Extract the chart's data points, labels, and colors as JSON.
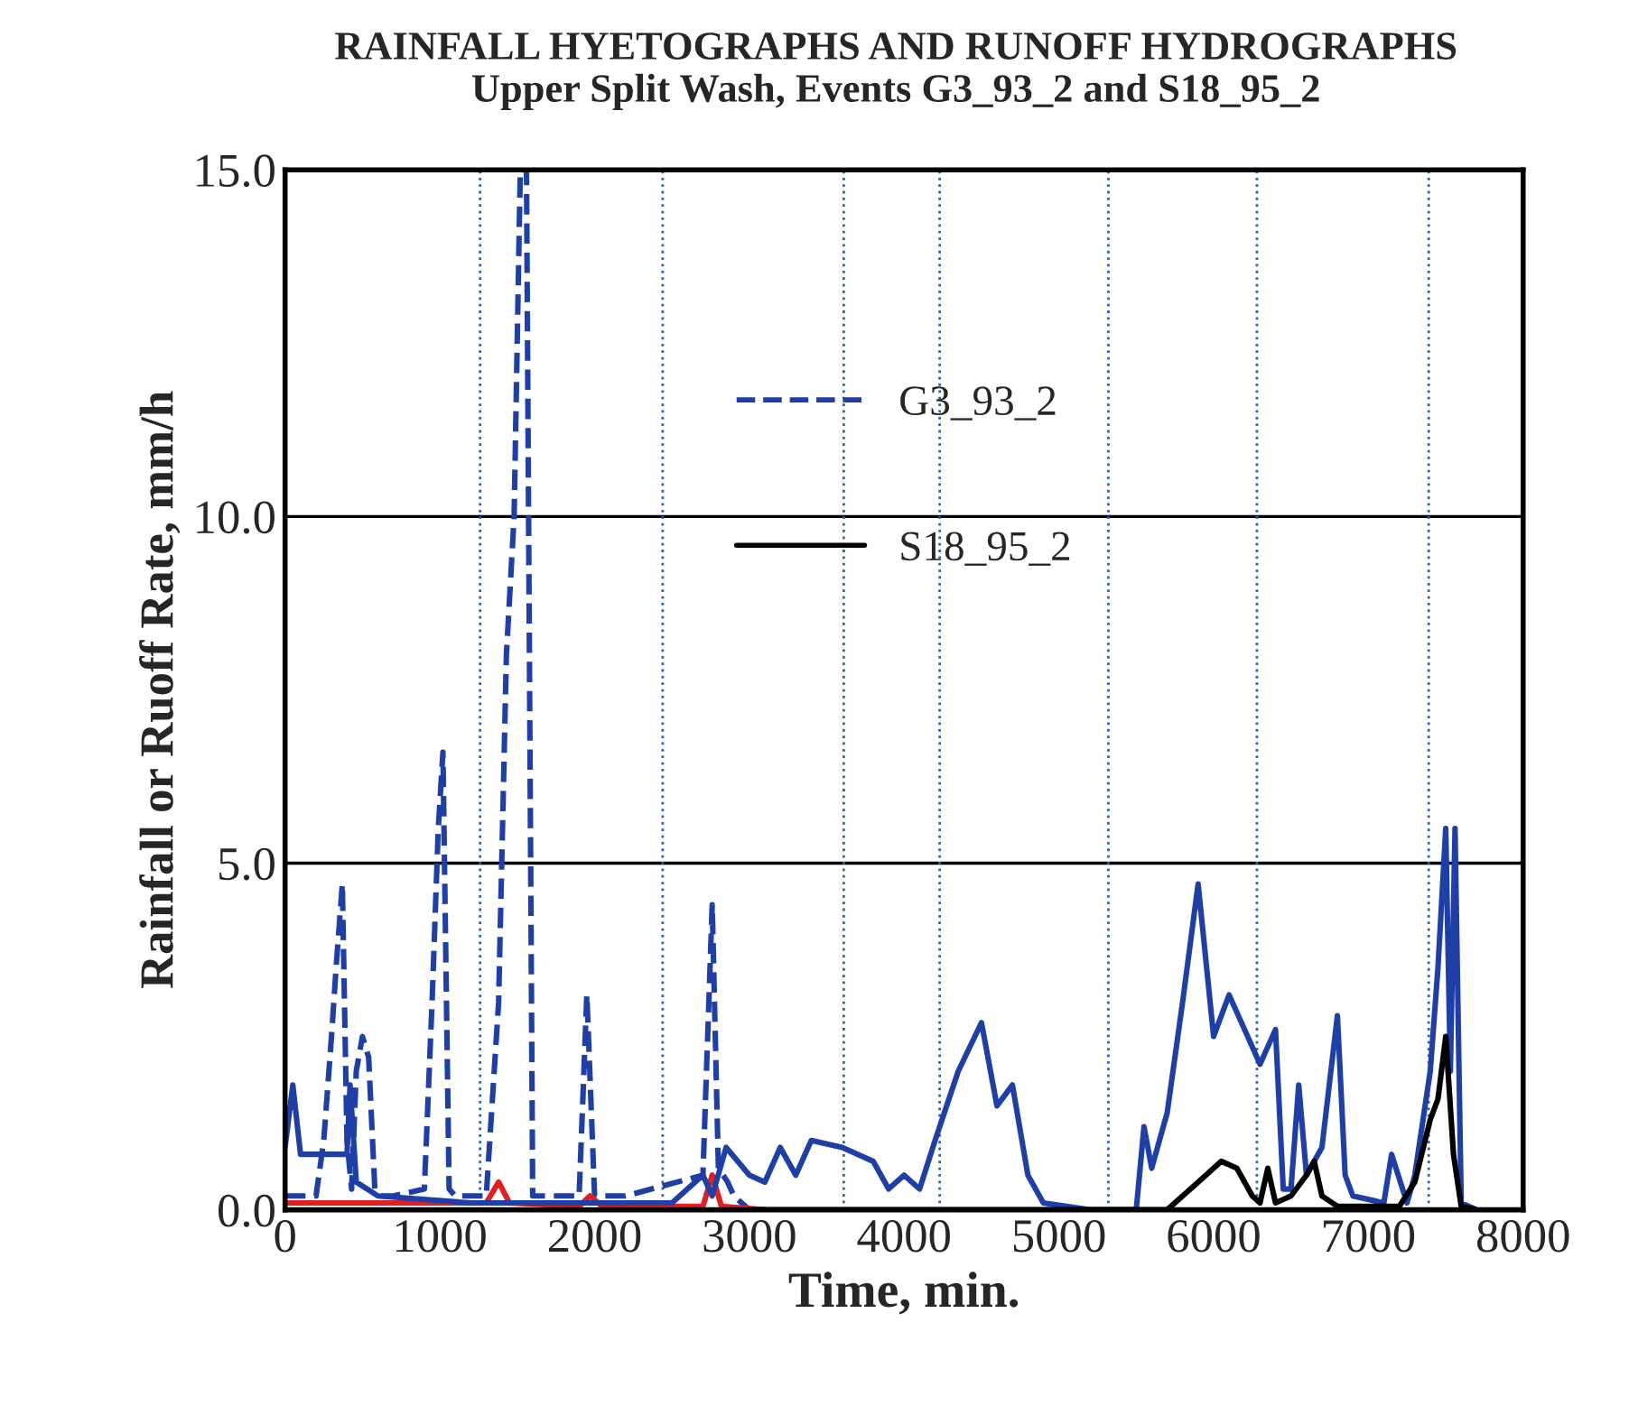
{
  "chart_data": {
    "type": "line",
    "title": "RAINFALL HYETOGRAPHS AND RUNOFF HYDROGRAPHS",
    "subtitle": "Upper Split Wash, Events G3_93_2 and S18_95_2",
    "xlabel": "Time, min.",
    "ylabel": "Rainfall or Ruoff Rate, mm/h",
    "xlim": [
      0,
      8000
    ],
    "ylim": [
      0,
      15
    ],
    "xticks": [
      0,
      1000,
      2000,
      3000,
      4000,
      5000,
      6000,
      7000,
      8000
    ],
    "yticks": [
      {
        "value": 0,
        "label": "0.0"
      },
      {
        "value": 5,
        "label": "5.0"
      },
      {
        "value": 10,
        "label": "10.0"
      },
      {
        "value": 15,
        "label": "15.0"
      }
    ],
    "grid": false,
    "legend": "top",
    "ref_lines": [
      {
        "axis": "y",
        "value": 5,
        "color": "#000000",
        "line_style": "solid"
      },
      {
        "axis": "y",
        "value": 10,
        "color": "#000000",
        "line_style": "solid"
      },
      {
        "axis": "x",
        "value": 1260,
        "color": "#2c5fc0",
        "line_style": "dotted"
      },
      {
        "axis": "x",
        "value": 2440,
        "color": "#2c5fc0",
        "line_style": "dotted"
      },
      {
        "axis": "x",
        "value": 3610,
        "color": "#2c5fc0",
        "line_style": "dotted"
      },
      {
        "axis": "x",
        "value": 4230,
        "color": "#2c5fc0",
        "line_style": "dotted"
      },
      {
        "axis": "x",
        "value": 5320,
        "color": "#2c5fc0",
        "line_style": "dotted"
      },
      {
        "axis": "x",
        "value": 6280,
        "color": "#2c5fc0",
        "line_style": "dotted"
      },
      {
        "axis": "x",
        "value": 7390,
        "color": "#2c5fc0",
        "line_style": "dotted"
      }
    ],
    "series": [
      {
        "name": "G3_93_2",
        "color": "#1f3fa8",
        "line_style": "dashed",
        "x": [
          0,
          200,
          250,
          300,
          330,
          370,
          400,
          430,
          460,
          500,
          540,
          580,
          620,
          700,
          900,
          950,
          990,
          1020,
          1060,
          1100,
          1300,
          1380,
          1430,
          1480,
          1520,
          1560,
          1600,
          1700,
          1900,
          1950,
          2000,
          2050,
          2200,
          2700,
          2760,
          2800,
          2860,
          2900,
          3000
        ],
        "values": [
          0.2,
          0.2,
          1.0,
          2.5,
          3.5,
          4.7,
          1.0,
          0.3,
          2.0,
          2.5,
          2.2,
          0.3,
          0.2,
          0.2,
          0.3,
          3.0,
          5.5,
          6.6,
          0.3,
          0.2,
          0.2,
          3.0,
          8.0,
          10.0,
          15.0,
          15.0,
          0.2,
          0.2,
          0.2,
          3.1,
          0.2,
          0.2,
          0.2,
          0.5,
          4.4,
          0.6,
          0.4,
          0.2,
          0.0
        ]
      },
      {
        "color": "#e02020",
        "line_style": "solid",
        "x": [
          0,
          1300,
          1380,
          1450,
          1900,
          1970,
          2050,
          2700,
          2760,
          2820,
          3100
        ],
        "values": [
          0.1,
          0.1,
          0.4,
          0.1,
          0.05,
          0.2,
          0.05,
          0.05,
          0.5,
          0.05,
          0.0
        ]
      },
      {
        "color": "#1f3fa8",
        "line_style": "solid",
        "x": [
          0,
          50,
          100,
          200,
          400,
          420,
          460,
          600,
          1200,
          2500,
          2700,
          2760,
          2850,
          3000,
          3100,
          3200,
          3300,
          3400,
          3600,
          3800,
          3900,
          4000,
          4100,
          4200,
          4350,
          4500,
          4600,
          4700,
          4800,
          4900,
          5200,
          5500,
          5550,
          5600,
          5700,
          5800,
          5900,
          6000,
          6100,
          6200,
          6300,
          6400,
          6450,
          6500,
          6550,
          6600,
          6700,
          6800,
          6850,
          6900,
          7100,
          7150,
          7250,
          7300,
          7400,
          7450,
          7500,
          7530,
          7560,
          7600,
          7700
        ],
        "values": [
          0.9,
          1.8,
          0.8,
          0.8,
          0.8,
          1.8,
          0.4,
          0.2,
          0.1,
          0.1,
          0.5,
          0.2,
          0.9,
          0.5,
          0.4,
          0.9,
          0.5,
          1.0,
          0.9,
          0.7,
          0.3,
          0.5,
          0.3,
          1.0,
          2.0,
          2.7,
          1.5,
          1.8,
          0.5,
          0.1,
          0.0,
          0.0,
          1.2,
          0.6,
          1.4,
          3.0,
          4.7,
          2.5,
          3.1,
          2.6,
          2.1,
          2.6,
          0.3,
          0.3,
          1.8,
          0.5,
          0.9,
          2.8,
          0.5,
          0.2,
          0.1,
          0.8,
          0.1,
          0.5,
          2.0,
          3.5,
          5.5,
          2.0,
          5.5,
          0.1,
          0.0
        ]
      },
      {
        "name": "S18_95_2",
        "color": "#000000",
        "line_style": "solid",
        "x": [
          3000,
          5700,
          5800,
          5900,
          6000,
          6050,
          6150,
          6250,
          6300,
          6350,
          6400,
          6500,
          6600,
          6650,
          6700,
          6800,
          7200,
          7300,
          7400,
          7450,
          7500,
          7550,
          7600,
          7700
        ],
        "values": [
          0.0,
          0.0,
          0.2,
          0.4,
          0.6,
          0.7,
          0.6,
          0.2,
          0.1,
          0.6,
          0.1,
          0.2,
          0.5,
          0.7,
          0.2,
          0.05,
          0.05,
          0.4,
          1.3,
          1.6,
          2.5,
          0.8,
          0.05,
          0.0
        ]
      }
    ]
  }
}
